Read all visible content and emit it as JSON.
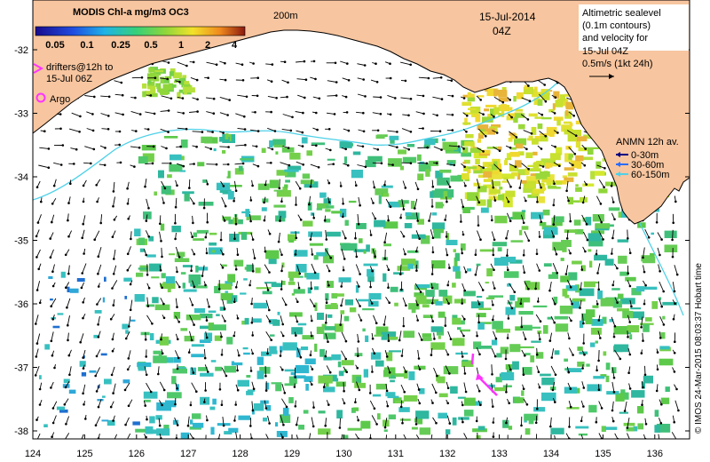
{
  "map": {
    "date": "15-Jul-2014",
    "time": "04Z",
    "depth_label": "200m",
    "lon_ticks": [
      "124",
      "125",
      "126",
      "127",
      "128",
      "129",
      "130",
      "131",
      "132",
      "133",
      "134",
      "135",
      "136"
    ],
    "lat_ticks": [
      "-32",
      "-33",
      "-34",
      "-35",
      "-36",
      "-37",
      "-38"
    ],
    "colors": {
      "land": "#f7c59f",
      "coast": "#000000",
      "isobath": "#4fd1e8",
      "arrow": "#000000",
      "drifter": "#ff33ff"
    }
  },
  "colorbar": {
    "title": "MODIS Chl-a mg/m3 OC3",
    "labels": [
      "0.05",
      "0.1",
      "0.25",
      "0.5",
      "1",
      "2",
      "4"
    ]
  },
  "legend_left": {
    "drifters": "drifters@12h to",
    "drifters2": "15-Jul 06Z",
    "argo": "Argo"
  },
  "legend_right": {
    "line1": "Altimetric sealevel",
    "line2": "(0.1m contours)",
    "line3": "and velocity for",
    "line4": "15-Jul 04Z",
    "line5": "0.5m/s (1kt 24h)"
  },
  "anmn": {
    "title": "ANMN 12h av.",
    "items": [
      {
        "label": "0-30m",
        "color": "#000080"
      },
      {
        "label": "30-60m",
        "color": "#2b6cff"
      },
      {
        "label": "60-150m",
        "color": "#4fd1e8"
      }
    ]
  },
  "credit": "© IMOS 24-Mar-2015 08:03:37 Hobart time"
}
